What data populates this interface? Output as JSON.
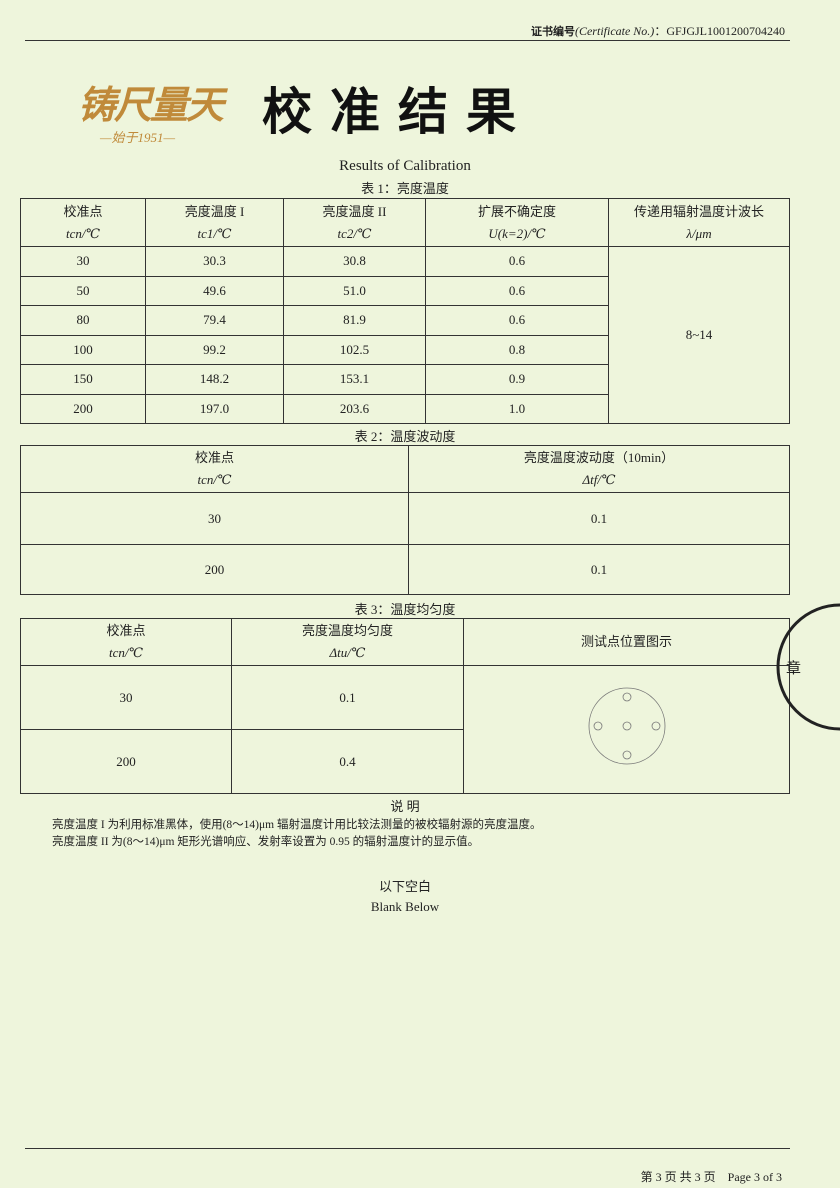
{
  "header": {
    "cert_label": "证书编号",
    "cert_en": "(Certificate No.)",
    "cert_no": "：GFJGJL1001200704240"
  },
  "logo": {
    "text": "铸尺量天",
    "since": "—始于1951—"
  },
  "title": "校准结果",
  "subtitle": "Results of Calibration",
  "table1": {
    "caption": "表 1：亮度温度",
    "headers": [
      [
        "校准点",
        "tcn/℃"
      ],
      [
        "亮度温度 I",
        "tc1/℃"
      ],
      [
        "亮度温度 II",
        "tc2/℃"
      ],
      [
        "扩展不确定度",
        "U(k=2)/℃"
      ],
      [
        "传递用辐射温度计波长",
        "λ/μm"
      ]
    ],
    "rows": [
      [
        "30",
        "30.3",
        "30.8",
        "0.6"
      ],
      [
        "50",
        "49.6",
        "51.0",
        "0.6"
      ],
      [
        "80",
        "79.4",
        "81.9",
        "0.6"
      ],
      [
        "100",
        "99.2",
        "102.5",
        "0.8"
      ],
      [
        "150",
        "148.2",
        "153.1",
        "0.9"
      ],
      [
        "200",
        "197.0",
        "203.6",
        "1.0"
      ]
    ],
    "wavelength": "8~14"
  },
  "table2": {
    "caption": "表 2：温度波动度",
    "headers": [
      [
        "校准点",
        "tcn/℃"
      ],
      [
        "亮度温度波动度（10min）",
        "Δtf/℃"
      ]
    ],
    "rows": [
      [
        "30",
        "0.1"
      ],
      [
        "200",
        "0.1"
      ]
    ]
  },
  "table3": {
    "caption": "表 3：温度均匀度",
    "headers": [
      [
        "校准点",
        "tcn/℃"
      ],
      [
        "亮度温度均匀度",
        "Δtu/℃"
      ],
      [
        "测试点位置图示"
      ]
    ],
    "rows": [
      [
        "30",
        "0.1"
      ],
      [
        "200",
        "0.4"
      ]
    ]
  },
  "notes": {
    "title": "说 明",
    "lines": [
      "亮度温度 I 为利用标准黑体，使用(8～14)μm 辐射温度计用比较法测量的被校辐射源的亮度温度。",
      "亮度温度 II 为(8～14)μm 矩形光谱响应、发射率设置为 0.95 的辐射温度计的显示值。"
    ]
  },
  "blank": {
    "cn": "以下空白",
    "en": "Blank Below"
  },
  "stamp": {
    "text": "集团公司 章 术研究所"
  },
  "footer": {
    "cn": "第 3 页 共 3 页",
    "en": "Page 3 of 3"
  }
}
